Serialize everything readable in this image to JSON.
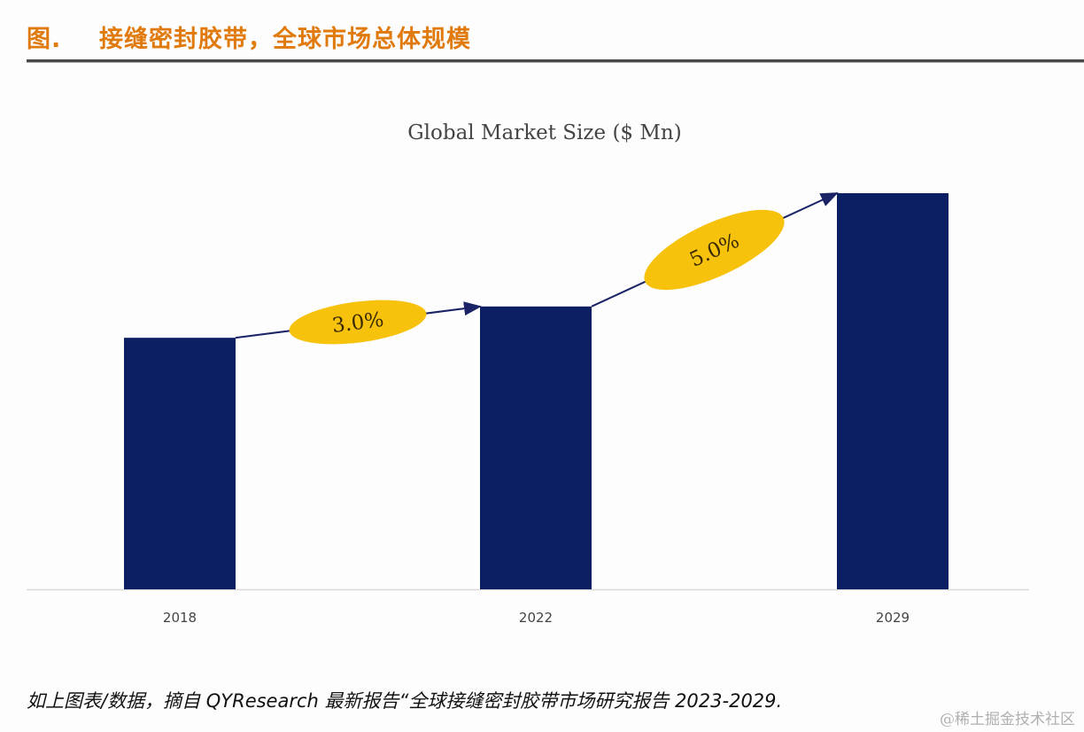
{
  "header": {
    "figure_label": "图.",
    "title": "接缝密封胶带，全球市场总体规模"
  },
  "chart_data": {
    "type": "bar",
    "title": "Global Market Size ($ Mn)",
    "xlabel": "",
    "ylabel": "",
    "categories": [
      "2018",
      "2022",
      "2029"
    ],
    "values": [
      63.5,
      71.4,
      100
    ],
    "value_units": "relative (2029 = 100), no y-axis values shown",
    "ylim": [
      0,
      100
    ],
    "grid": false,
    "bar_color": "#0c1f62",
    "annotations": [
      {
        "label": "3.0%",
        "meaning": "CAGR 2018-2022",
        "from": "2018",
        "to": "2022"
      },
      {
        "label": "5.0%",
        "meaning": "CAGR 2022-2029",
        "from": "2022",
        "to": "2029"
      }
    ],
    "annotation_color": "#f7c20c"
  },
  "footer": {
    "source": "如上图表/数据，摘自 QYResearch 最新报告“全球接缝密封胶带市场研究报告 2023-2029.",
    "watermark": "@稀土掘金技术社区"
  }
}
